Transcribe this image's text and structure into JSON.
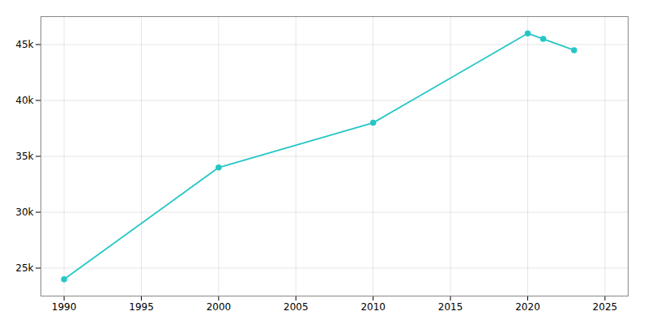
{
  "chart_data": {
    "type": "line",
    "x": [
      1990,
      2000,
      2010,
      2020,
      2021,
      2023
    ],
    "values": [
      24000,
      34000,
      38000,
      46000,
      45500,
      44500
    ],
    "color": "#26C6C6",
    "marker": "circle",
    "xlim": [
      1988.5,
      2026.5
    ],
    "ylim": [
      22500,
      47500
    ],
    "xticks": [
      1990,
      1995,
      2000,
      2005,
      2010,
      2015,
      2020,
      2025
    ],
    "yticks": [
      {
        "value": 25000,
        "label": "25k"
      },
      {
        "value": 30000,
        "label": "30k"
      },
      {
        "value": 35000,
        "label": "35k"
      },
      {
        "value": 40000,
        "label": "40k"
      },
      {
        "value": 45000,
        "label": "45k"
      }
    ],
    "grid": true
  }
}
